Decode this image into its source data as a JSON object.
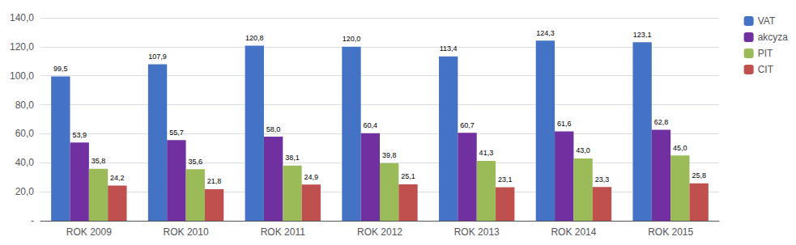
{
  "chart_data": {
    "type": "bar",
    "categories": [
      "ROK 2009",
      "ROK 2010",
      "ROK 2011",
      "ROK 2012",
      "ROK 2013",
      "ROK 2014",
      "ROK 2015"
    ],
    "series": [
      {
        "name": "VAT",
        "color": "#4472C4",
        "values": [
          99.5,
          107.9,
          120.8,
          120.0,
          113.4,
          124.3,
          123.1
        ],
        "value_labels": [
          "99,5",
          "107,9",
          "120,8",
          "120,0",
          "113,4",
          "124,3",
          "123,1"
        ]
      },
      {
        "name": "akcyza",
        "color": "#7030A0",
        "values": [
          53.9,
          55.7,
          58.0,
          60.4,
          60.7,
          61.6,
          62.8
        ],
        "value_labels": [
          "53,9",
          "55,7",
          "58,0",
          "60,4",
          "60,7",
          "61,6",
          "62,8"
        ]
      },
      {
        "name": "PIT",
        "color": "#9BBB59",
        "values": [
          35.8,
          35.6,
          38.1,
          39.8,
          41.3,
          43.0,
          45.0
        ],
        "value_labels": [
          "35,8",
          "35,6",
          "38,1",
          "39,8",
          "41,3",
          "43,0",
          "45,0"
        ]
      },
      {
        "name": "CIT",
        "color": "#C0504D",
        "values": [
          24.2,
          21.8,
          24.9,
          25.1,
          23.1,
          23.3,
          25.8
        ],
        "value_labels": [
          "24,2",
          "21,8",
          "24,9",
          "25,1",
          "23,1",
          "23,3",
          "25,8"
        ]
      }
    ],
    "ylim": [
      0,
      140
    ],
    "yticks": [
      {
        "value": 0,
        "label": "-"
      },
      {
        "value": 20,
        "label": "20,0"
      },
      {
        "value": 40,
        "label": "40,0"
      },
      {
        "value": 60,
        "label": "60,0"
      },
      {
        "value": 80,
        "label": "80,0"
      },
      {
        "value": 100,
        "label": "100,0"
      },
      {
        "value": 120,
        "label": "120,0"
      },
      {
        "value": 140,
        "label": "140,0"
      }
    ],
    "grid": true,
    "legend": "upper right",
    "data_labels": true
  }
}
